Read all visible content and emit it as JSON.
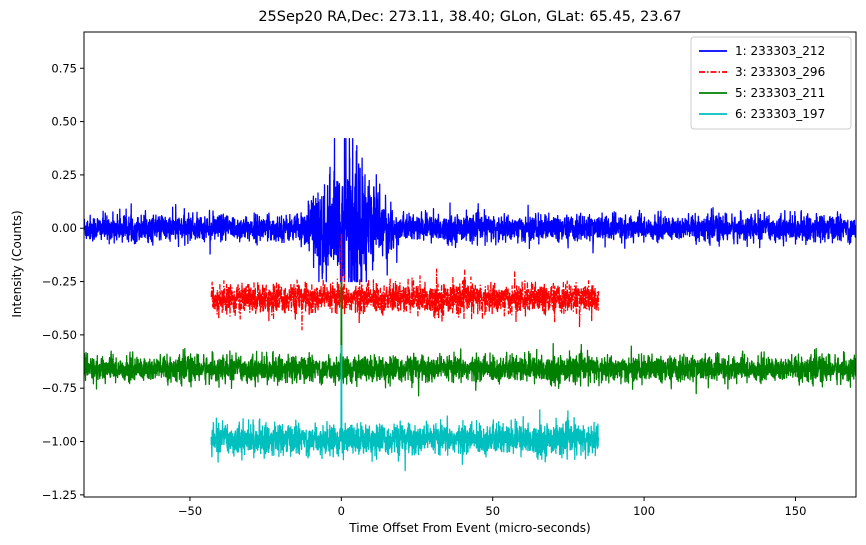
{
  "chart_data": {
    "type": "line",
    "title": "25Sep20 RA,Dec:  273.11,  38.40; GLon, GLat:   65.45,  23.67",
    "xlabel": "Time Offset From Event (micro-seconds)",
    "ylabel": "Intensity (Counts)",
    "xlim": [
      -85,
      170
    ],
    "ylim": [
      -1.26,
      0.92
    ],
    "xticks": [
      -50,
      0,
      50,
      100,
      150
    ],
    "xtick_labels": [
      "−50",
      "0",
      "50",
      "100",
      "150"
    ],
    "yticks": [
      0.75,
      0.5,
      0.25,
      0.0,
      -0.25,
      -0.5,
      -0.75,
      -1.0,
      -1.25
    ],
    "ytick_labels": [
      "0.75",
      "0.50",
      "0.25",
      "0.00",
      "−0.25",
      "−0.50",
      "−0.75",
      "−1.00",
      "−1.25"
    ],
    "legend_position": "top-right",
    "series": [
      {
        "name": "1: 233303_212",
        "color": "#0000ff",
        "style": "solid",
        "x_range": [
          -85,
          170
        ],
        "baseline": 0.0,
        "noise": 0.03,
        "burst": {
          "x_range": [
            -15,
            20
          ],
          "amplitude": 0.42,
          "min": -0.25
        }
      },
      {
        "name": "3: 233303_296",
        "color": "#ff0000",
        "style": "dashdot",
        "x_range": [
          -43,
          85
        ],
        "baseline": -0.33,
        "noise": 0.035,
        "peak": {
          "x": 0,
          "value": -0.03
        }
      },
      {
        "name": "5: 233303_211",
        "color": "#008000",
        "style": "solid",
        "x_range": [
          -85,
          170
        ],
        "baseline": -0.66,
        "noise": 0.03,
        "peak": {
          "x": 0,
          "value": -0.25
        }
      },
      {
        "name": "6: 233303_197",
        "color": "#00bfbf",
        "style": "solid",
        "x_range": [
          -43,
          85
        ],
        "baseline": -0.99,
        "noise": 0.035,
        "peak": {
          "x": 0,
          "value": -0.55
        }
      }
    ]
  }
}
